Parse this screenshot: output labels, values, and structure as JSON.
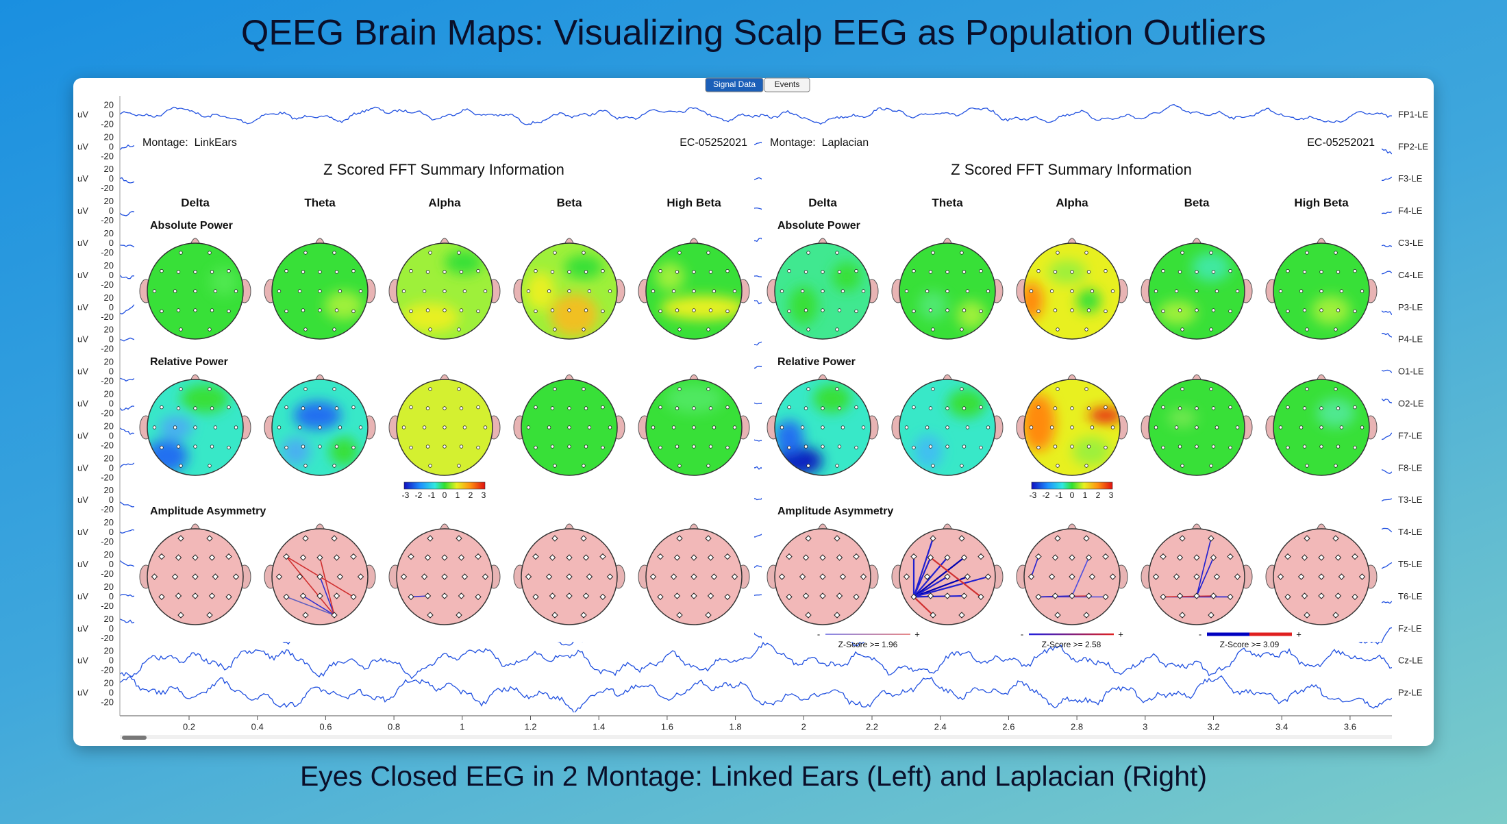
{
  "title": "QEEG Brain Maps: Visualizing Scalp EEG as Population Outliers",
  "caption": "Eyes Closed EEG in 2 Montage: Linked Ears (Left) and Laplacian (Right)",
  "tabs": [
    "Signal Data",
    "Events"
  ],
  "signal": {
    "unit": "uV",
    "amplitude_ticks": [
      "20",
      "0",
      "-20"
    ],
    "channels": [
      "FP1-LE",
      "FP2-LE",
      "F3-LE",
      "F4-LE",
      "C3-LE",
      "C4-LE",
      "P3-LE",
      "P4-LE",
      "O1-LE",
      "O2-LE",
      "F7-LE",
      "F8-LE",
      "T3-LE",
      "T4-LE",
      "T5-LE",
      "T6-LE",
      "Fz-LE",
      "Cz-LE",
      "Pz-LE"
    ],
    "time_ticks": [
      "0.2",
      "0.4",
      "0.6",
      "0.8",
      "1",
      "1.2",
      "1.4",
      "1.6",
      "1.8",
      "2",
      "2.2",
      "2.4",
      "2.6",
      "2.8",
      "3",
      "3.2",
      "3.4",
      "3.6"
    ]
  },
  "panels": [
    {
      "montage": "Montage:  LinkEars",
      "recording": "EC-05252021",
      "heading": "Z Scored FFT Summary Information",
      "bands": [
        "Delta",
        "Theta",
        "Alpha",
        "Beta",
        "High Beta"
      ],
      "rows": [
        "Absolute Power",
        "Relative Power",
        "Amplitude Asymmetry"
      ],
      "color_scale": [
        "-3",
        "-2",
        "-1",
        "0",
        "1",
        "2",
        "3"
      ]
    },
    {
      "montage": "Montage:  Laplacian",
      "recording": "EC-05252021",
      "heading": "Z Scored FFT Summary Information",
      "bands": [
        "Delta",
        "Theta",
        "Alpha",
        "Beta",
        "High Beta"
      ],
      "rows": [
        "Absolute Power",
        "Relative Power",
        "Amplitude Asymmetry"
      ],
      "color_scale": [
        "-3",
        "-2",
        "-1",
        "0",
        "1",
        "2",
        "3"
      ],
      "asymmetry_legend": {
        "minus": "-",
        "plus": "+",
        "thresholds": [
          "Z-Score >= 1.96",
          "Z-Score >= 2.58",
          "Z-Score >= 3.09"
        ]
      }
    }
  ]
}
